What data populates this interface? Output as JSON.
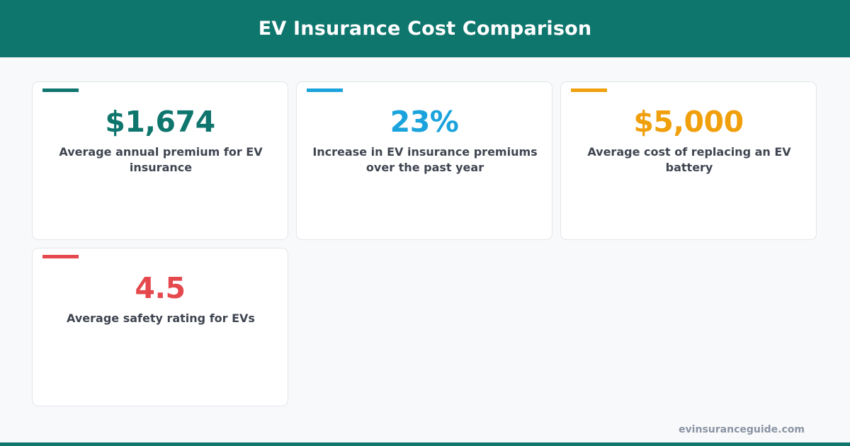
{
  "header": {
    "title": "EV Insurance Cost Comparison"
  },
  "colors": {
    "header_bg": "#0f766e",
    "teal": "#0f766e",
    "blue": "#1aa3dc",
    "amber": "#f0a00c",
    "red": "#e5484d"
  },
  "stats": [
    {
      "value": "$1,674",
      "description": "Average annual premium for EV insurance",
      "color": "#0f766e"
    },
    {
      "value": "23%",
      "description": "Increase in EV insurance premiums over the past year",
      "color": "#1aa3dc"
    },
    {
      "value": "$5,000",
      "description": "Average cost of replacing an EV battery",
      "color": "#f0a00c"
    },
    {
      "value": "4.5",
      "description": "Average safety rating for EVs",
      "color": "#e5484d"
    }
  ],
  "footer": {
    "site": "evinsuranceguide.com"
  }
}
